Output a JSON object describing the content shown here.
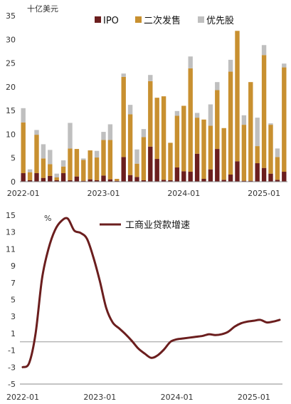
{
  "chart_data": [
    {
      "type": "bar",
      "stacked": true,
      "ylabel": "十亿美元",
      "ylim": [
        0,
        35
      ],
      "yticks": [
        0,
        5,
        10,
        15,
        20,
        25,
        30,
        35
      ],
      "xtick_labels": [
        "2022-01",
        "2023-01",
        "2024-01",
        "2025-01"
      ],
      "legend_position": "top",
      "categories": [
        "2022-01",
        "2022-02",
        "2022-03",
        "2022-04",
        "2022-05",
        "2022-06",
        "2022-07",
        "2022-08",
        "2022-09",
        "2022-10",
        "2022-11",
        "2022-12",
        "2023-01",
        "2023-02",
        "2023-03",
        "2023-04",
        "2023-05",
        "2023-06",
        "2023-07",
        "2023-08",
        "2023-09",
        "2023-10",
        "2023-11",
        "2023-12",
        "2024-01",
        "2024-02",
        "2024-03",
        "2024-04",
        "2024-05",
        "2024-06",
        "2024-07",
        "2024-08",
        "2024-09",
        "2024-10",
        "2024-11",
        "2024-12",
        "2025-01",
        "2025-02",
        "2025-03",
        "2025-04"
      ],
      "series": [
        {
          "name": "IPO",
          "color": "#6B1E1E",
          "values": [
            1.8,
            0.3,
            1.8,
            0.8,
            1.2,
            0.3,
            1.8,
            0.3,
            1.1,
            0.2,
            0.5,
            0.3,
            1.3,
            0.5,
            0.2,
            5.2,
            1.4,
            1.0,
            0.3,
            7.4,
            4.8,
            0.4,
            0.3,
            3.0,
            2.2,
            2.1,
            5.9,
            0.6,
            2.6,
            6.9,
            0.4,
            1.5,
            4.3,
            0.2,
            0.2,
            3.9,
            2.9,
            1.7,
            0.4,
            2.1
          ]
        },
        {
          "name": "二次发售",
          "color": "#C89030",
          "values": [
            10.7,
            1.7,
            8.1,
            4.1,
            2.5,
            0.6,
            1.4,
            6.7,
            5.8,
            4.4,
            6.1,
            4.8,
            7.5,
            8.3,
            0.4,
            16.9,
            12.8,
            2.8,
            9.1,
            13.8,
            12.9,
            17.6,
            7.9,
            10.9,
            13.8,
            21.8,
            7.6,
            12.5,
            9.2,
            12.4,
            10.9,
            21.7,
            27.5,
            11.8,
            20.8,
            3.6,
            23.8,
            10.3,
            4.8,
            22.0
          ]
        },
        {
          "name": "优先股",
          "color": "#BFBFBF",
          "values": [
            3.0,
            0.6,
            1.0,
            3.0,
            3.0,
            0.8,
            1.3,
            5.4,
            0.0,
            0.3,
            0.0,
            1.4,
            1.7,
            3.3,
            0.0,
            0.7,
            2.0,
            3.0,
            1.7,
            1.3,
            0.0,
            0.0,
            0.0,
            1.0,
            0.0,
            2.5,
            1.0,
            0.0,
            4.5,
            1.7,
            0.0,
            2.5,
            0.0,
            2.0,
            0.0,
            6.0,
            2.1,
            0.3,
            1.8,
            0.8
          ]
        }
      ]
    },
    {
      "type": "line",
      "ylabel": "%",
      "ylim": [
        -5,
        15
      ],
      "yticks": [
        -5,
        -3,
        -1,
        1,
        3,
        5,
        7,
        9,
        11,
        13,
        15
      ],
      "xtick_labels": [
        "2022-01",
        "2023-01",
        "2024-01",
        "2025-01"
      ],
      "legend_position": "top-right",
      "series": [
        {
          "name": "工商业贷款增速",
          "color": "#6B1E1E",
          "x_month_labels": [
            "2022-01",
            "2022-02",
            "2022-03",
            "2022-04",
            "2022-05",
            "2022-06",
            "2022-07",
            "2022-08",
            "2022-09",
            "2022-10",
            "2022-11",
            "2022-12",
            "2023-01",
            "2023-02",
            "2023-03",
            "2023-04",
            "2023-05",
            "2023-06",
            "2023-07",
            "2023-08",
            "2023-09",
            "2023-10",
            "2023-11",
            "2023-12",
            "2024-01",
            "2024-02",
            "2024-03",
            "2024-04",
            "2024-05",
            "2024-06",
            "2024-07",
            "2024-08",
            "2024-09",
            "2024-10",
            "2024-11",
            "2024-12",
            "2025-01",
            "2025-02",
            "2025-03",
            "2025-04",
            "2025-05"
          ],
          "values": [
            -3.0,
            -2.5,
            1.0,
            7.5,
            11.0,
            13.2,
            14.3,
            14.6,
            13.2,
            12.9,
            12.2,
            10.0,
            7.2,
            4.0,
            2.3,
            1.6,
            0.9,
            0.1,
            -0.8,
            -1.4,
            -1.9,
            -1.6,
            -0.9,
            0.0,
            0.3,
            0.4,
            0.5,
            0.6,
            0.7,
            0.9,
            0.8,
            0.9,
            1.2,
            1.8,
            2.2,
            2.4,
            2.5,
            2.6,
            2.3,
            2.4,
            2.6
          ]
        }
      ]
    }
  ]
}
